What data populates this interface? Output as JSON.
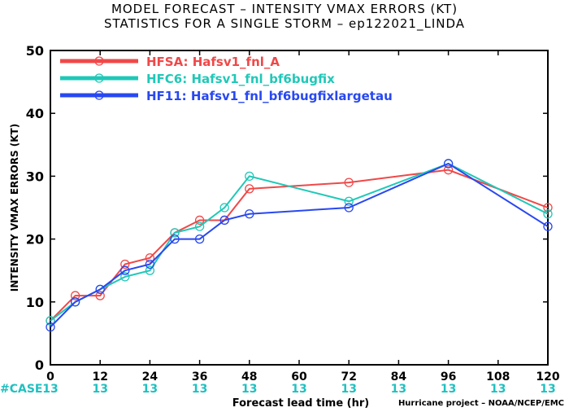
{
  "title_line1": "MODEL FORECAST – INTENSITY VMAX ERRORS (KT)",
  "title_line2": "STATISTICS FOR A SINGLE STORM – ep122021_LINDA",
  "credit": "Hurricane project – NOAA/NCEP/EMC",
  "case_label": "#CASE",
  "colors": {
    "case": "#20c0c0"
  },
  "chart_data": {
    "type": "line",
    "xlabel": "Forecast lead time (hr)",
    "ylabel": "INTENSITY VMAX ERRORS (KT)",
    "xlim": [
      0,
      120
    ],
    "ylim": [
      0,
      50
    ],
    "xticks": [
      0,
      12,
      24,
      36,
      48,
      60,
      72,
      84,
      96,
      108,
      120
    ],
    "yticks": [
      0,
      10,
      20,
      30,
      40,
      50
    ],
    "grid": false,
    "legend_position": "top-left",
    "case_counts": {
      "x": [
        0,
        12,
        24,
        36,
        48,
        60,
        72,
        84,
        96,
        108,
        120
      ],
      "values": [
        13,
        13,
        13,
        13,
        13,
        13,
        13,
        13,
        13,
        13,
        13
      ]
    },
    "series": [
      {
        "name": "HFSA: Hafsv1_fnl_A",
        "color": "#f04848",
        "x": [
          0,
          6,
          12,
          18,
          24,
          30,
          36,
          42,
          48,
          72,
          96,
          120
        ],
        "y": [
          7,
          11,
          11,
          16,
          17,
          21,
          23,
          23,
          28,
          29,
          31,
          25
        ]
      },
      {
        "name": "HFC6: Hafsv1_fnl_bf6bugfix",
        "color": "#20c8b8",
        "x": [
          0,
          6,
          12,
          18,
          24,
          30,
          36,
          42,
          48,
          72,
          96,
          120
        ],
        "y": [
          7,
          10,
          12,
          14,
          15,
          21,
          22,
          25,
          30,
          26,
          32,
          24
        ]
      },
      {
        "name": "HF11: Hafsv1_fnl_bf6bugfixlargetau",
        "color": "#2848f0",
        "x": [
          0,
          6,
          12,
          18,
          24,
          30,
          36,
          42,
          48,
          72,
          96,
          120
        ],
        "y": [
          6,
          10,
          12,
          15,
          16,
          20,
          20,
          23,
          24,
          25,
          32,
          22
        ]
      }
    ]
  }
}
